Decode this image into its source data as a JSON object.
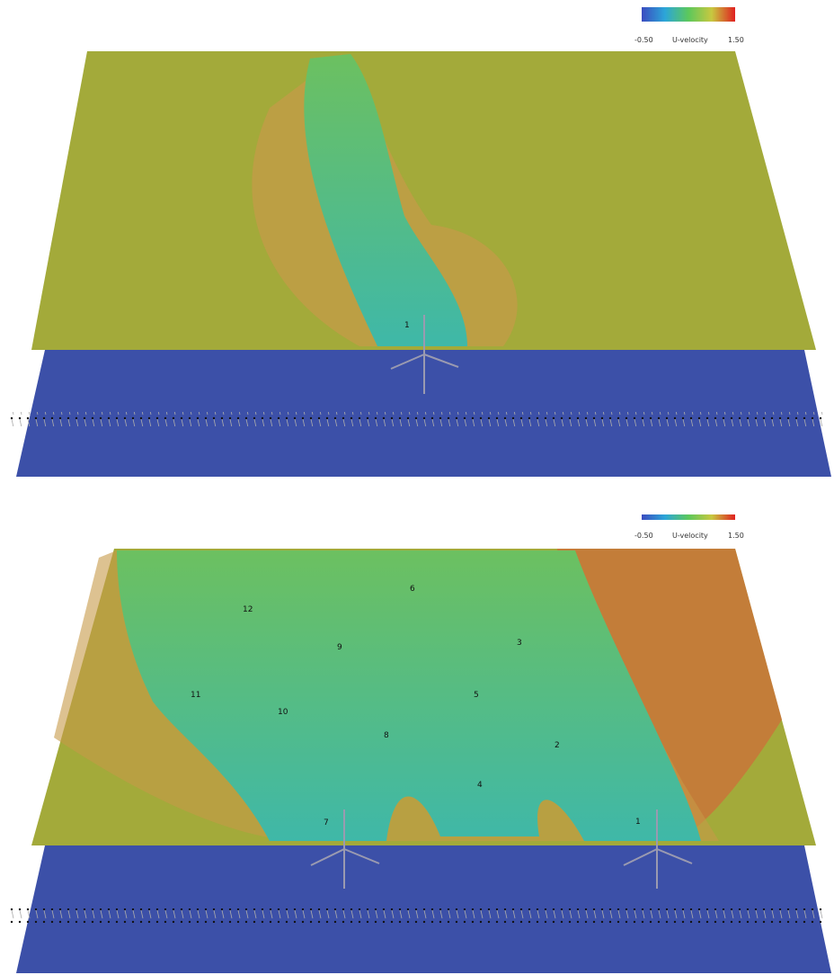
{
  "panels": [
    {
      "colorbar": {
        "min": "-0.50",
        "label": "U-velocity",
        "max": "1.50"
      },
      "turbines": [
        "1"
      ]
    },
    {
      "colorbar": {
        "min": "-0.50",
        "label": "U-velocity",
        "max": "1.50"
      },
      "turbines": [
        "12",
        "6",
        "9",
        "3",
        "11",
        "5",
        "10",
        "8",
        "2",
        "4",
        "7",
        "1"
      ]
    }
  ]
}
